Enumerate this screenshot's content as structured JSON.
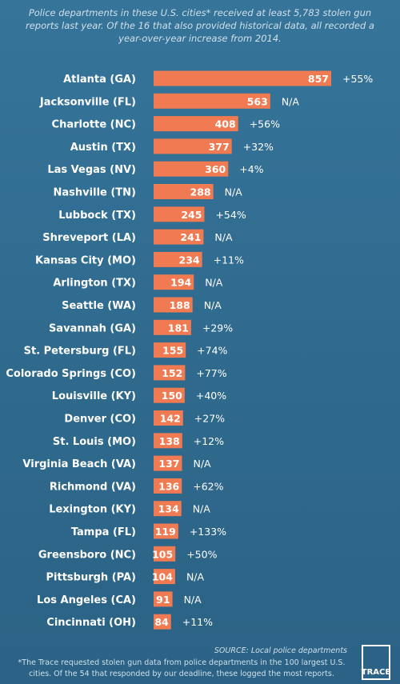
{
  "header": {
    "subtitle": "Police departments in these U.S. cities* received at least 5,783 stolen gun reports last year. Of the 16 that also provided historical data, all recorded a year-over-year increase from 2014."
  },
  "chart_data": {
    "type": "bar",
    "orientation": "horizontal",
    "categories": [
      "Atlanta (GA)",
      "Jacksonville (FL)",
      "Charlotte (NC)",
      "Austin (TX)",
      "Las Vegas (NV)",
      "Nashville (TN)",
      "Lubbock (TX)",
      "Shreveport (LA)",
      "Kansas City (MO)",
      "Arlington (TX)",
      "Seattle (WA)",
      "Savannah (GA)",
      "St. Petersburg (FL)",
      "Colorado Springs (CO)",
      "Louisville (KY)",
      "Denver (CO)",
      "St. Louis (MO)",
      "Virginia Beach (VA)",
      "Richmond (VA)",
      "Lexington (KY)",
      "Tampa (FL)",
      "Greensboro (NC)",
      "Pittsburgh (PA)",
      "Los Angeles (CA)",
      "Cincinnati (OH)"
    ],
    "values": [
      857,
      563,
      408,
      377,
      360,
      288,
      245,
      241,
      234,
      194,
      188,
      181,
      155,
      152,
      150,
      142,
      138,
      137,
      136,
      134,
      119,
      105,
      104,
      91,
      84
    ],
    "changes": [
      "+55%",
      "N/A",
      "+56%",
      "+32%",
      "+4%",
      "N/A",
      "+54%",
      "N/A",
      "+11%",
      "N/A",
      "N/A",
      "+29%",
      "+74%",
      "+77%",
      "+40%",
      "+27%",
      "+12%",
      "N/A",
      "+62%",
      "N/A",
      "+133%",
      "+50%",
      "N/A",
      "N/A",
      "+11%"
    ],
    "bar_color": "#f07b52",
    "xlim": [
      0,
      857
    ],
    "grid": false
  },
  "footer": {
    "source": "SOURCE: Local police departments",
    "footnote": "*The Trace requested stolen gun data from police departments in the 100 largest U.S. cities. Of the 54 that responded by our deadline, these logged the most reports.",
    "logo_text": "TRACE"
  },
  "colors": {
    "background": "#2f6b8e",
    "bar": "#f07b52",
    "text": "#ffffff"
  }
}
